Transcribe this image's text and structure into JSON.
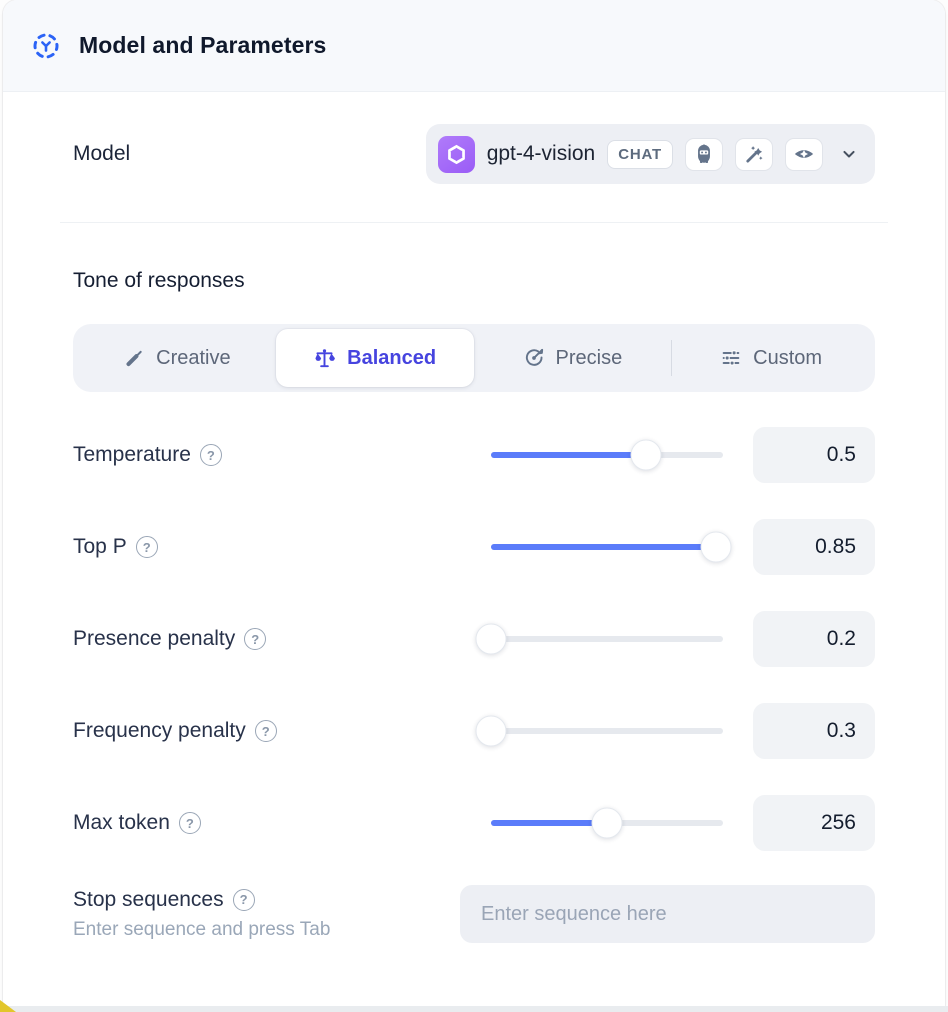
{
  "header": {
    "title": "Model and Parameters",
    "icon": "model-hub-icon"
  },
  "model": {
    "label": "Model",
    "name": "gpt-4-vision",
    "type_badge": "CHAT",
    "provider_icon": "openai-logo",
    "capability_icons": [
      "robot-icon",
      "magic-wand-icon",
      "vision-eye-icon"
    ],
    "dropdown_icon": "chevron-down-icon"
  },
  "tone": {
    "heading": "Tone of responses",
    "tabs": [
      {
        "label": "Creative",
        "icon": "paintbrush-icon",
        "active": false
      },
      {
        "label": "Balanced",
        "icon": "balance-scale-icon",
        "active": true
      },
      {
        "label": "Precise",
        "icon": "target-icon",
        "active": false
      },
      {
        "label": "Custom",
        "icon": "sliders-icon",
        "active": false
      }
    ]
  },
  "params": [
    {
      "label": "Temperature",
      "value": "0.5",
      "fill_pct": 67
    },
    {
      "label": "Top P",
      "value": "0.85",
      "fill_pct": 97
    },
    {
      "label": "Presence penalty",
      "value": "0.2",
      "fill_pct": 0
    },
    {
      "label": "Frequency penalty",
      "value": "0.3",
      "fill_pct": 0
    },
    {
      "label": "Max token",
      "value": "256",
      "fill_pct": 50
    }
  ],
  "stop_sequences": {
    "label": "Stop sequences",
    "hint": "Enter sequence and press Tab",
    "placeholder": "Enter sequence here"
  },
  "colors": {
    "accent_blue": "#5b7cfa",
    "active_indigo": "#4644df",
    "provider_purple": "#9a5cf6",
    "header_icon_blue": "#2b63f6",
    "highlight_yellow": "#e2c62b"
  }
}
